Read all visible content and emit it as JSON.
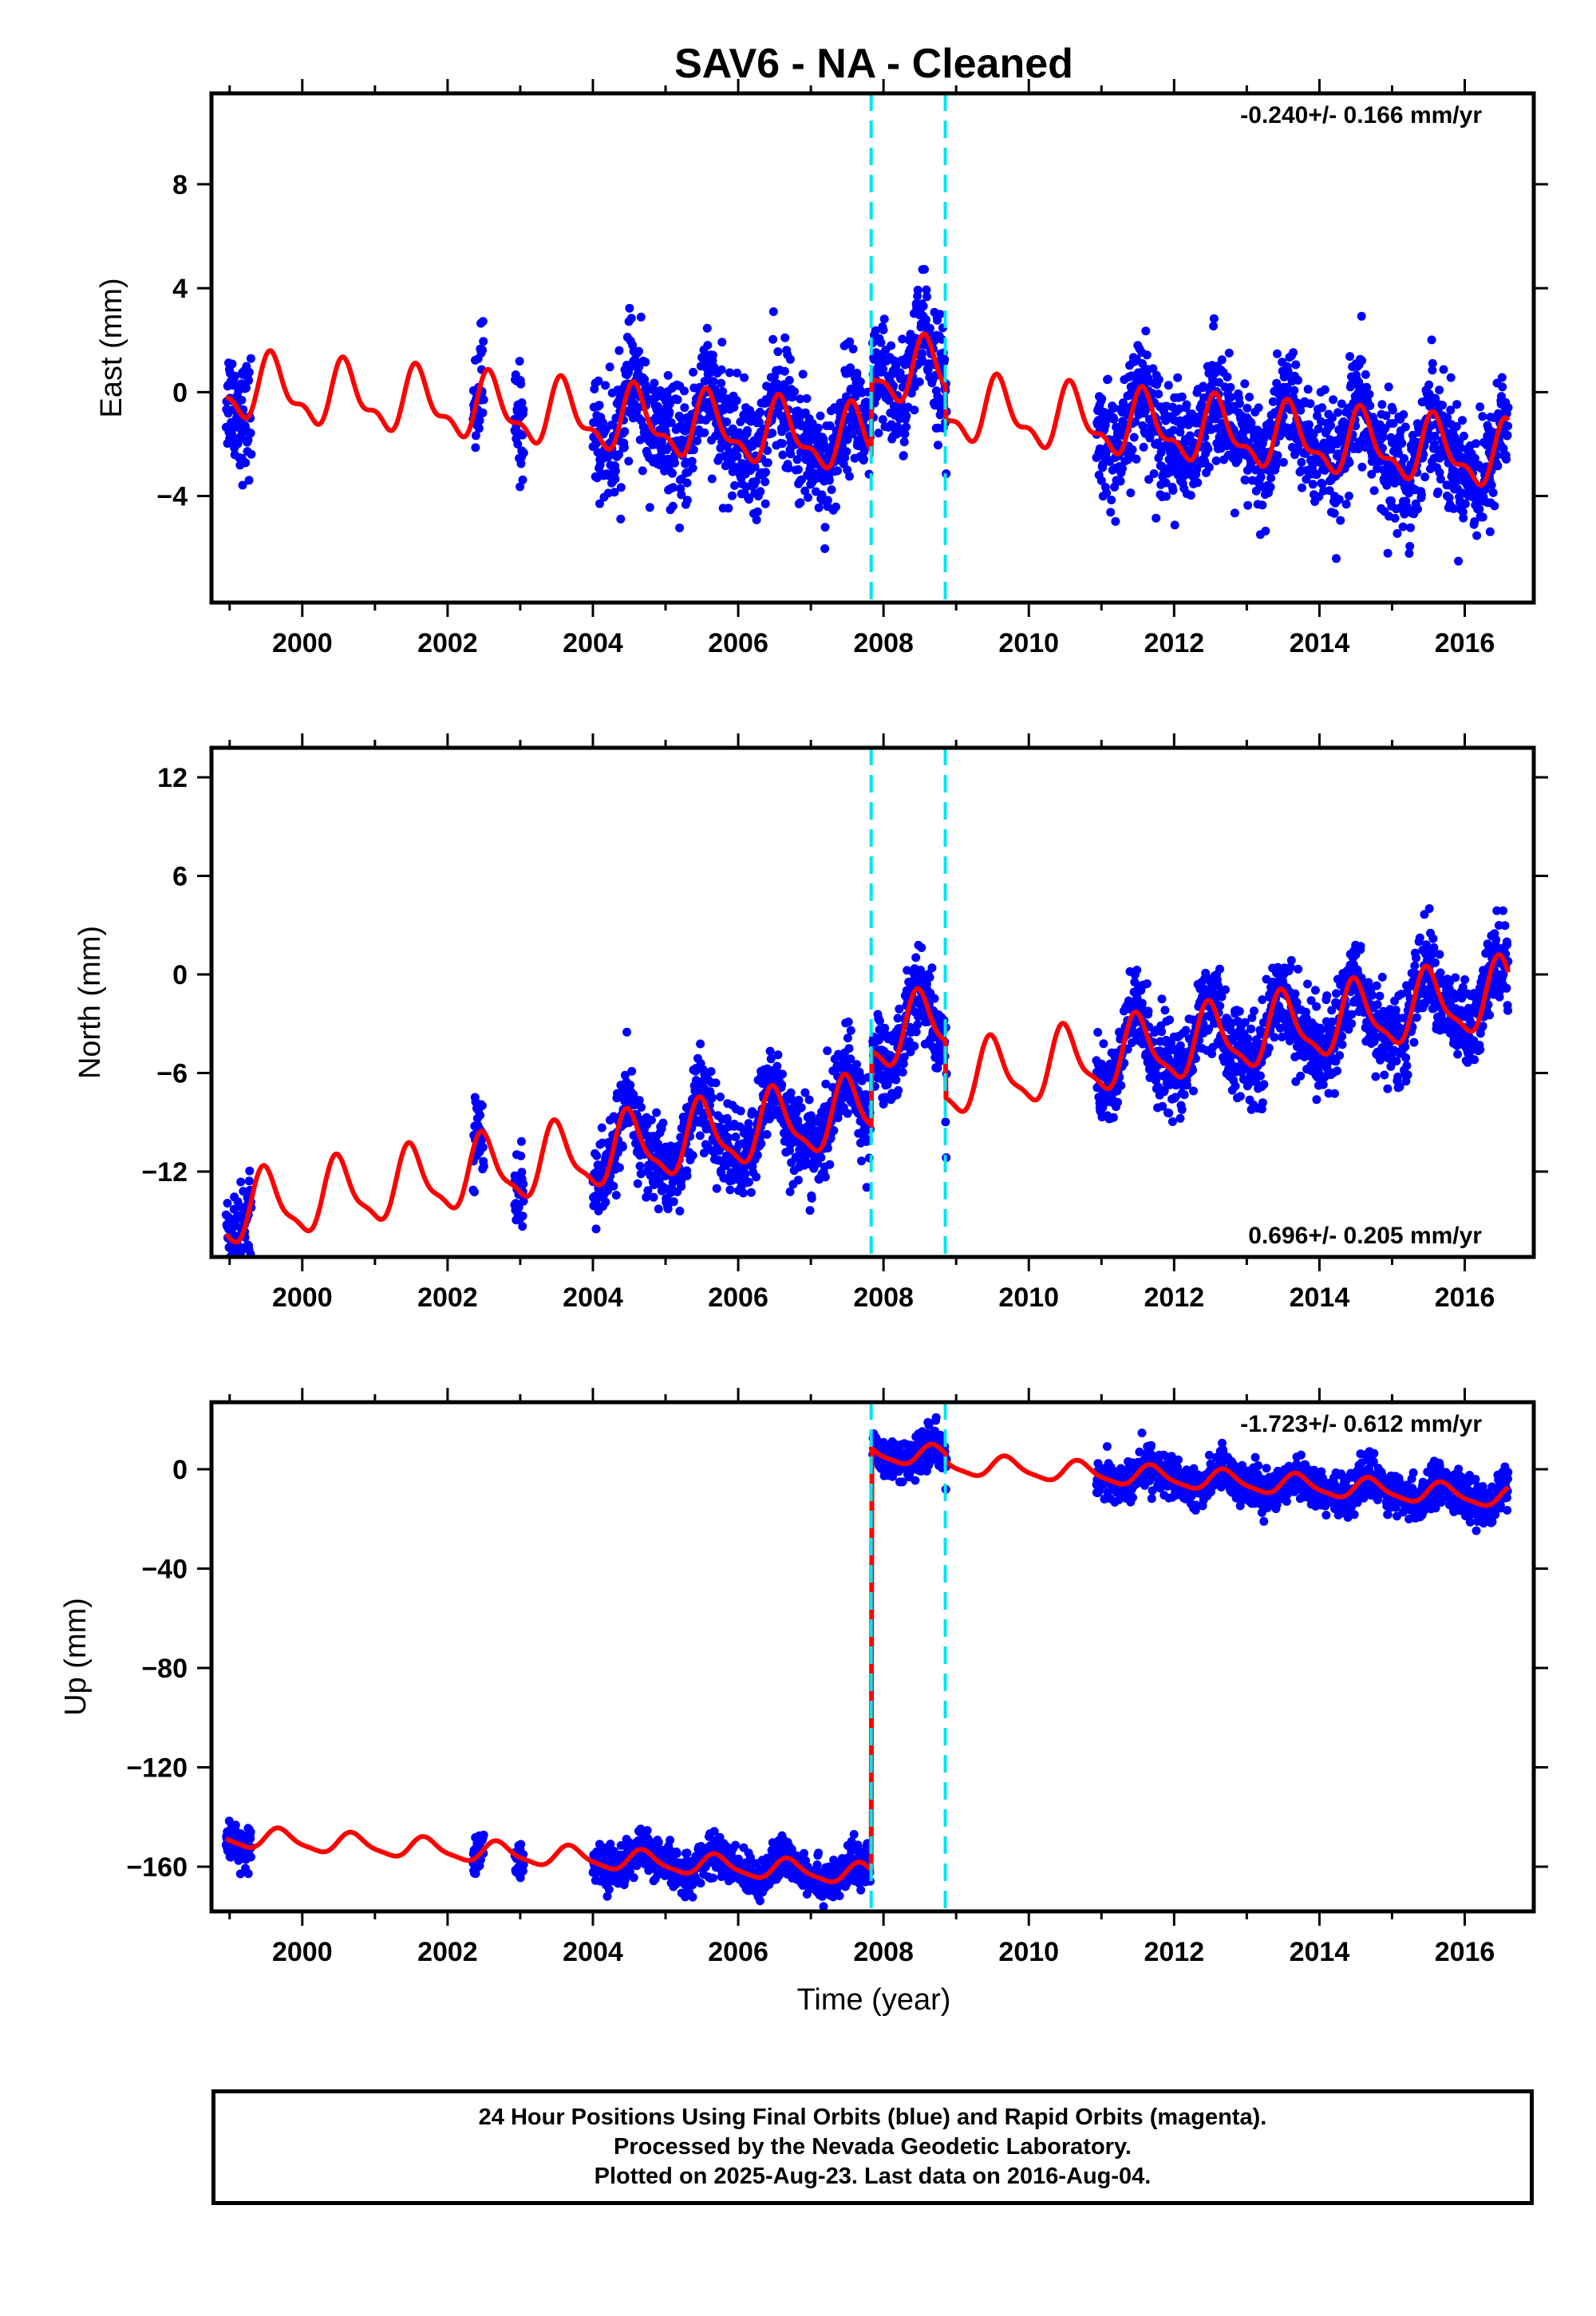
{
  "chart_data": {
    "title": "SAV6  - NA - Cleaned",
    "type": "scatter",
    "xlabel": "Time (year)",
    "xlim": [
      1998.75,
      2016.95
    ],
    "x_ticks": [
      2000,
      2002,
      2004,
      2006,
      2008,
      2010,
      2012,
      2014,
      2016
    ],
    "x_tick_labels": [
      "2000",
      "2002",
      "2004",
      "2006",
      "2008",
      "2010",
      "2012",
      "2014",
      "2016"
    ],
    "steps": [
      2007.83,
      2008.85
    ],
    "colors": {
      "data": "#0000ff",
      "model": "#ff0000",
      "steps": "#00e5ee",
      "frame": "#000000"
    },
    "data_segments": [
      [
        1998.95,
        1999.3
      ],
      [
        2002.35,
        2002.5
      ],
      [
        2002.92,
        2003.05
      ],
      [
        2004.0,
        2007.82
      ],
      [
        2007.85,
        2008.87
      ],
      [
        2010.93,
        2016.6
      ]
    ],
    "panels": [
      {
        "ylabel": "East (mm)",
        "ylim": [
          -8.1,
          11.5
        ],
        "y_ticks": [
          8,
          4,
          0,
          -4
        ],
        "y_tick_labels": [
          "8",
          "4",
          "0",
          "−4"
        ],
        "rate_text": "-0.240+/- 0.166 mm/yr",
        "rate_position": "top-right",
        "model": {
          "rate": -0.24,
          "annual_amp": 1.1,
          "semiannual_amp": 0.5,
          "phase_peak": 0.6,
          "offsets_before_step": [
            {
              "x": 1998.95,
              "y": 0.2
            }
          ],
          "step_jumps": [
            2.8,
            -1.3
          ],
          "noise": 1.1
        }
      },
      {
        "ylabel": "North (mm)",
        "ylim": [
          -17.2,
          13.8
        ],
        "y_ticks": [
          12,
          6,
          0,
          -6,
          -12
        ],
        "y_tick_labels": [
          "12",
          "6",
          "0",
          "−6",
          "−12"
        ],
        "rate_text": "0.696+/- 0.205 mm/yr",
        "rate_position": "bottom-right",
        "model": {
          "rate": 0.696,
          "annual_amp": 2.0,
          "semiannual_amp": 0.6,
          "phase_peak": 0.5,
          "offsets_before_step": [
            {
              "x": 1998.95,
              "y": -14.5
            }
          ],
          "step_jumps": [
            4.5,
            -3.5
          ],
          "noise": 1.3
        }
      },
      {
        "ylabel": "Up (mm)",
        "ylim": [
          -178,
          27
        ],
        "y_ticks": [
          0,
          -40,
          -80,
          -120,
          -160
        ],
        "y_tick_labels": [
          "0",
          "−40",
          "−80",
          "−120",
          "−160"
        ],
        "rate_text": "-1.723+/- 0.612 mm/yr",
        "rate_position": "top-right",
        "model": {
          "rate": -1.723,
          "annual_amp": 4.0,
          "semiannual_amp": 1.0,
          "phase_peak": 0.7,
          "offsets_before_step": [
            {
              "x": 1998.95,
              "y": -148
            }
          ],
          "step_jumps": [
            170,
            -3
          ],
          "noise": 4.0
        }
      }
    ]
  },
  "footer": {
    "line1": "24 Hour Positions Using Final Orbits (blue) and Rapid Orbits (magenta).",
    "line2": "Processed by the Nevada Geodetic Laboratory.",
    "line3": "Plotted on 2025-Aug-23. Last data on 2016-Aug-04."
  }
}
